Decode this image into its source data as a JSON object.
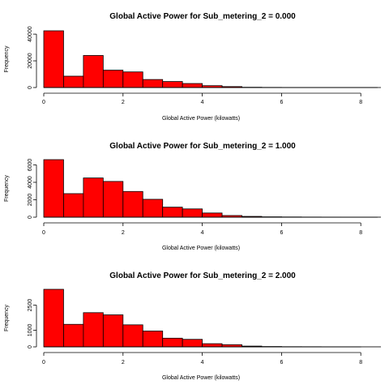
{
  "colors": {
    "bar_fill": "#ff0000",
    "bar_stroke": "#000000",
    "axis": "#000000"
  },
  "chart_data": [
    {
      "type": "histogram",
      "title": "Global Active Power for Sub_metering_2 = 0.000",
      "xlabel": "Global Active Power (kilowatts)",
      "ylabel": "Frequency",
      "bin_width": 0.5,
      "bin_starts": [
        0,
        0.5,
        1,
        1.5,
        2,
        2.5,
        3,
        3.5,
        4,
        4.5,
        5,
        5.5,
        6,
        6.5,
        7,
        7.5,
        8
      ],
      "values": [
        42500,
        8500,
        24000,
        13000,
        11700,
        6000,
        4500,
        3000,
        1400,
        700,
        200,
        100,
        50,
        30,
        20,
        10,
        5
      ],
      "xlim": [
        0,
        8.3
      ],
      "ylim": [
        0,
        42500
      ],
      "xticks": [
        0,
        2,
        4,
        6,
        8
      ],
      "yticks": [
        0,
        20000,
        40000
      ],
      "grid": false,
      "legend": "none"
    },
    {
      "type": "histogram",
      "title": "Global Active Power for Sub_metering_2 = 1.000",
      "xlabel": "Global Active Power (kilowatts)",
      "ylabel": "Frequency",
      "bin_width": 0.5,
      "bin_starts": [
        0,
        0.5,
        1,
        1.5,
        2,
        2.5,
        3,
        3.5,
        4,
        4.5,
        5,
        5.5,
        6,
        6.5,
        7,
        7.5,
        8
      ],
      "values": [
        6600,
        2700,
        4500,
        4100,
        2950,
        2050,
        1150,
        950,
        480,
        190,
        90,
        40,
        25,
        15,
        10,
        5,
        5
      ],
      "xlim": [
        0,
        8.3
      ],
      "ylim": [
        0,
        6600
      ],
      "xticks": [
        0,
        2,
        4,
        6,
        8
      ],
      "yticks": [
        0,
        2000,
        4000,
        6000
      ],
      "grid": false,
      "legend": "none"
    },
    {
      "type": "histogram",
      "title": "Global Active Power for Sub_metering_2 = 2.000",
      "xlabel": "Global Active Power (kilowatts)",
      "ylabel": "Frequency",
      "bin_width": 0.5,
      "bin_starts": [
        0,
        0.5,
        1,
        1.5,
        2,
        2.5,
        3,
        3.5,
        4,
        4.5,
        5,
        5.5,
        6,
        6.5,
        7,
        7.5,
        8
      ],
      "values": [
        3450,
        1350,
        2050,
        1920,
        1320,
        950,
        520,
        450,
        190,
        130,
        45,
        20,
        10,
        8,
        5,
        3,
        2
      ],
      "xlim": [
        0,
        8.0
      ],
      "ylim": [
        0,
        3450
      ],
      "xticks": [
        0,
        2,
        4,
        6,
        8
      ],
      "yticks": [
        0,
        1000,
        2500
      ],
      "grid": false,
      "legend": "none"
    }
  ]
}
